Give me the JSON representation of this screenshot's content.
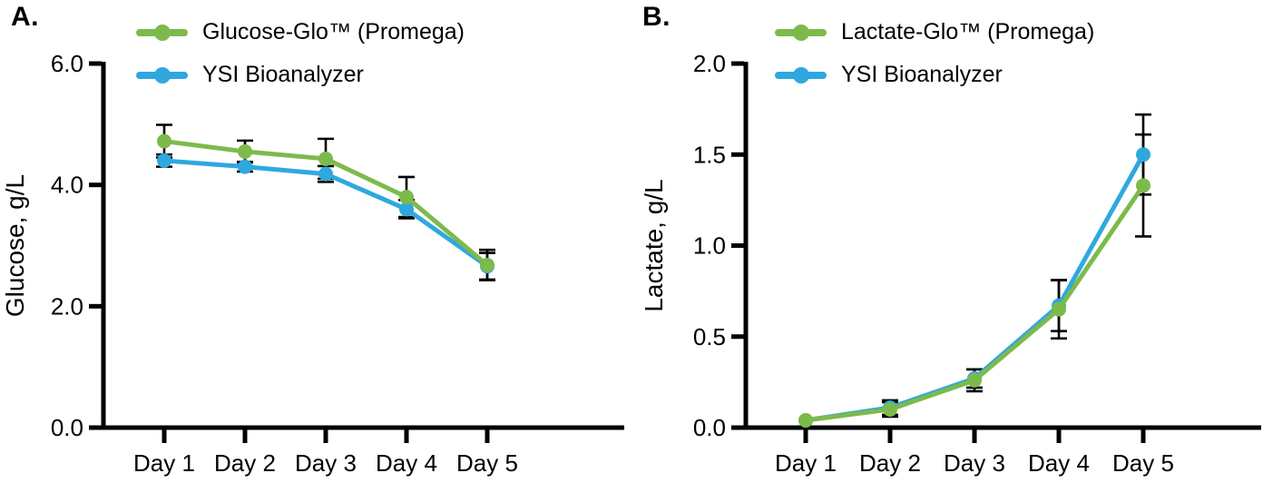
{
  "chart_data": [
    {
      "type": "line",
      "panel_label": "A.",
      "categories": [
        "Day 1",
        "Day 2",
        "Day 3",
        "Day 4",
        "Day 5"
      ],
      "xlabel": "",
      "ylabel": "Glucose, g/L",
      "ylim": [
        0.0,
        6.0
      ],
      "yticks": [
        0.0,
        2.0,
        4.0,
        6.0
      ],
      "ytick_labels": [
        "0.0",
        "2.0",
        "4.0",
        "6.0"
      ],
      "grid": false,
      "legend_position": "top-left-inside",
      "series": [
        {
          "name": "Glucose-Glo™ (Promega)",
          "color": "#7DBA4C",
          "values": [
            4.72,
            4.55,
            4.43,
            3.8,
            2.68
          ],
          "errors": [
            0.27,
            0.18,
            0.33,
            0.33,
            0.25
          ]
        },
        {
          "name": "YSI Bioanalyzer",
          "color": "#2FA8DF",
          "values": [
            4.4,
            4.3,
            4.18,
            3.6,
            2.66
          ],
          "errors": [
            0.1,
            0.08,
            0.13,
            0.15,
            0.22
          ]
        }
      ]
    },
    {
      "type": "line",
      "panel_label": "B.",
      "categories": [
        "Day 1",
        "Day 2",
        "Day 3",
        "Day 4",
        "Day 5"
      ],
      "xlabel": "",
      "ylabel": "Lactate, g/L",
      "ylim": [
        0.0,
        2.0
      ],
      "yticks": [
        0.0,
        0.5,
        1.0,
        1.5,
        2.0
      ],
      "ytick_labels": [
        "0.0",
        "0.5",
        "1.0",
        "1.5",
        "2.0"
      ],
      "grid": false,
      "legend_position": "top-left-inside",
      "series": [
        {
          "name": "Lactate-Glo™ (Promega)",
          "color": "#7DBA4C",
          "values": [
            0.04,
            0.1,
            0.26,
            0.65,
            1.33
          ],
          "errors": [
            0.01,
            0.04,
            0.06,
            0.16,
            0.28
          ]
        },
        {
          "name": "YSI Bioanalyzer",
          "color": "#2FA8DF",
          "values": [
            0.04,
            0.11,
            0.27,
            0.67,
            1.5
          ],
          "errors": [
            0.01,
            0.04,
            0.05,
            0.14,
            0.22
          ]
        }
      ]
    }
  ]
}
